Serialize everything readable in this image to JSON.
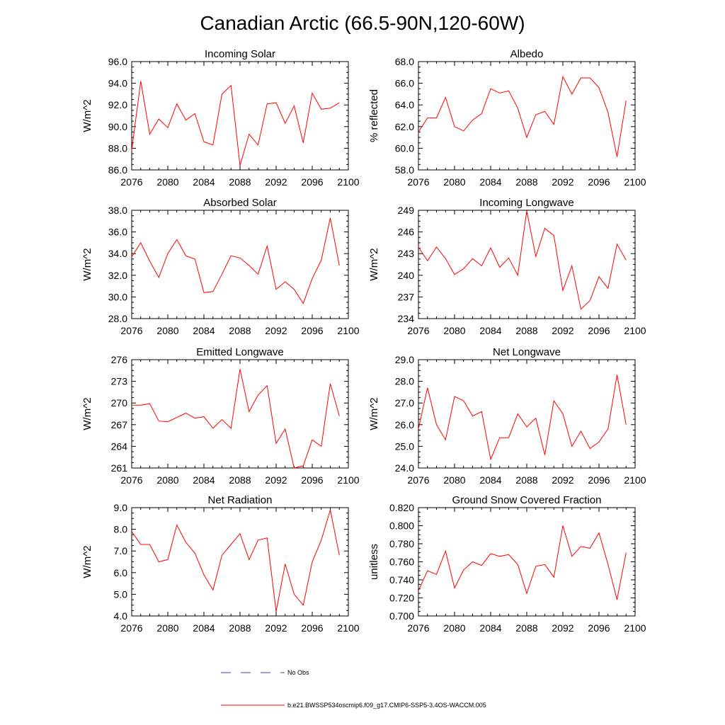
{
  "figure": {
    "title": "Canadian Arctic (66.5-90N,120-60W)"
  },
  "legend": [
    {
      "label": "No Obs",
      "color": "#4040c0",
      "style": "dashed"
    },
    {
      "label": "b.e21.BWSSP534oscmip6.f09_g17.CMIP6-SSP5-3.4OS-WACCM.005",
      "color": "#ff0000",
      "style": "solid"
    }
  ],
  "chart_data": [
    {
      "type": "line",
      "title": "Incoming Solar",
      "ylabel": "W/m^2",
      "xlim": [
        2076,
        2100
      ],
      "ylim": [
        86.0,
        96.0
      ],
      "xticks": [
        "2076",
        "2080",
        "2084",
        "2088",
        "2092",
        "2096",
        "2100"
      ],
      "yticks": [
        "86.0",
        "88.0",
        "90.0",
        "92.0",
        "94.0",
        "96.0"
      ],
      "x": [
        2076,
        2077,
        2078,
        2079,
        2080,
        2081,
        2082,
        2083,
        2084,
        2085,
        2086,
        2087,
        2088,
        2089,
        2090,
        2091,
        2092,
        2093,
        2094,
        2095,
        2096,
        2097,
        2098,
        2099
      ],
      "series": [
        {
          "color": "#ff0000",
          "values": [
            87.8,
            94.2,
            89.3,
            90.7,
            89.9,
            92.1,
            90.6,
            91.2,
            88.6,
            88.3,
            93.0,
            93.8,
            86.4,
            89.3,
            88.3,
            92.1,
            92.2,
            90.3,
            91.9,
            88.5,
            93.1,
            91.6,
            91.7,
            92.2
          ]
        }
      ]
    },
    {
      "type": "line",
      "title": "Albedo",
      "ylabel": "% reflected",
      "xlim": [
        2076,
        2100
      ],
      "ylim": [
        58.0,
        68.0
      ],
      "xticks": [
        "2076",
        "2080",
        "2084",
        "2088",
        "2092",
        "2096",
        "2100"
      ],
      "yticks": [
        "58.0",
        "60.0",
        "62.0",
        "64.0",
        "66.0",
        "68.0"
      ],
      "x": [
        2076,
        2077,
        2078,
        2079,
        2080,
        2081,
        2082,
        2083,
        2084,
        2085,
        2086,
        2087,
        2088,
        2089,
        2090,
        2091,
        2092,
        2093,
        2094,
        2095,
        2096,
        2097,
        2098,
        2099
      ],
      "series": [
        {
          "color": "#ff0000",
          "values": [
            61.5,
            62.8,
            62.8,
            64.7,
            62.0,
            61.6,
            62.6,
            63.2,
            65.5,
            65.1,
            65.3,
            63.7,
            61.0,
            63.1,
            63.4,
            62.2,
            66.6,
            65.0,
            66.5,
            66.5,
            65.6,
            63.3,
            59.2,
            64.4
          ]
        }
      ]
    },
    {
      "type": "line",
      "title": "Absorbed Solar",
      "ylabel": "W/m^2",
      "xlim": [
        2076,
        2100
      ],
      "ylim": [
        28.0,
        38.0
      ],
      "xticks": [
        "2076",
        "2080",
        "2084",
        "2088",
        "2092",
        "2096",
        "2100"
      ],
      "yticks": [
        "28.0",
        "30.0",
        "32.0",
        "34.0",
        "36.0",
        "38.0"
      ],
      "x": [
        2076,
        2077,
        2078,
        2079,
        2080,
        2081,
        2082,
        2083,
        2084,
        2085,
        2086,
        2087,
        2088,
        2089,
        2090,
        2091,
        2092,
        2093,
        2094,
        2095,
        2096,
        2097,
        2098,
        2099
      ],
      "series": [
        {
          "color": "#ff0000",
          "values": [
            33.7,
            35.0,
            33.3,
            31.8,
            34.0,
            35.3,
            33.8,
            33.5,
            30.4,
            30.5,
            32.1,
            33.8,
            33.6,
            32.9,
            32.1,
            34.7,
            30.7,
            31.4,
            30.7,
            29.4,
            31.7,
            33.4,
            37.3,
            32.9
          ]
        }
      ]
    },
    {
      "type": "line",
      "title": "Incoming Longwave",
      "ylabel": "W/m^2",
      "xlim": [
        2076,
        2100
      ],
      "ylim": [
        234,
        249
      ],
      "xticks": [
        "2076",
        "2080",
        "2084",
        "2088",
        "2092",
        "2096",
        "2100"
      ],
      "yticks": [
        "234",
        "237",
        "240",
        "243",
        "246",
        "249"
      ],
      "x": [
        2076,
        2077,
        2078,
        2079,
        2080,
        2081,
        2082,
        2083,
        2084,
        2085,
        2086,
        2087,
        2088,
        2089,
        2090,
        2091,
        2092,
        2093,
        2094,
        2095,
        2096,
        2097,
        2098,
        2099
      ],
      "series": [
        {
          "color": "#ff0000",
          "values": [
            243.9,
            242.0,
            243.9,
            242.3,
            240.1,
            240.9,
            242.3,
            241.3,
            243.8,
            241.1,
            242.4,
            240.0,
            248.9,
            242.6,
            246.5,
            245.5,
            237.9,
            241.3,
            235.3,
            236.5,
            239.8,
            238.2,
            244.3,
            242.1
          ]
        }
      ]
    },
    {
      "type": "line",
      "title": "Emitted Longwave",
      "ylabel": "W/m^2",
      "xlim": [
        2076,
        2100
      ],
      "ylim": [
        261,
        276
      ],
      "xticks": [
        "2076",
        "2080",
        "2084",
        "2088",
        "2092",
        "2096",
        "2100"
      ],
      "yticks": [
        "261",
        "264",
        "267",
        "270",
        "273",
        "276"
      ],
      "x": [
        2076,
        2077,
        2078,
        2079,
        2080,
        2081,
        2082,
        2083,
        2084,
        2085,
        2086,
        2087,
        2088,
        2089,
        2090,
        2091,
        2092,
        2093,
        2094,
        2095,
        2096,
        2097,
        2098,
        2099
      ],
      "series": [
        {
          "color": "#ff0000",
          "values": [
            269.7,
            269.7,
            269.9,
            267.5,
            267.4,
            268.0,
            268.6,
            267.9,
            268.1,
            266.5,
            267.7,
            266.5,
            274.7,
            268.8,
            271.1,
            272.4,
            264.4,
            266.4,
            261.0,
            261.3,
            264.9,
            264.0,
            272.7,
            268.2
          ]
        }
      ]
    },
    {
      "type": "line",
      "title": "Net Longwave",
      "ylabel": "W/m^2",
      "xlim": [
        2076,
        2100
      ],
      "ylim": [
        24.0,
        29.0
      ],
      "xticks": [
        "2076",
        "2080",
        "2084",
        "2088",
        "2092",
        "2096",
        "2100"
      ],
      "yticks": [
        "24.0",
        "25.0",
        "26.0",
        "27.0",
        "28.0",
        "29.0"
      ],
      "x": [
        2076,
        2077,
        2078,
        2079,
        2080,
        2081,
        2082,
        2083,
        2084,
        2085,
        2086,
        2087,
        2088,
        2089,
        2090,
        2091,
        2092,
        2093,
        2094,
        2095,
        2096,
        2097,
        2098,
        2099
      ],
      "series": [
        {
          "color": "#ff0000",
          "values": [
            25.8,
            27.7,
            26.0,
            25.3,
            27.3,
            27.1,
            26.4,
            26.6,
            24.4,
            25.4,
            25.4,
            26.5,
            25.9,
            26.3,
            24.6,
            27.1,
            26.5,
            25.0,
            25.7,
            24.9,
            25.2,
            25.8,
            28.3,
            26.0
          ]
        }
      ]
    },
    {
      "type": "line",
      "title": "Net Radiation",
      "ylabel": "W/m^2",
      "xlim": [
        2076,
        2100
      ],
      "ylim": [
        4.0,
        9.0
      ],
      "xticks": [
        "2076",
        "2080",
        "2084",
        "2088",
        "2092",
        "2096",
        "2100"
      ],
      "yticks": [
        "4.0",
        "5.0",
        "6.0",
        "7.0",
        "8.0",
        "9.0"
      ],
      "x": [
        2076,
        2077,
        2078,
        2079,
        2080,
        2081,
        2082,
        2083,
        2084,
        2085,
        2086,
        2087,
        2088,
        2089,
        2090,
        2091,
        2092,
        2093,
        2094,
        2095,
        2096,
        2097,
        2098,
        2099
      ],
      "series": [
        {
          "color": "#ff0000",
          "values": [
            7.9,
            7.3,
            7.3,
            6.5,
            6.6,
            8.2,
            7.4,
            6.9,
            5.9,
            5.2,
            6.8,
            7.3,
            7.8,
            6.6,
            7.5,
            7.6,
            4.2,
            6.4,
            5.0,
            4.5,
            6.5,
            7.5,
            8.9,
            6.8
          ]
        }
      ]
    },
    {
      "type": "line",
      "title": "Ground Snow Covered Fraction",
      "ylabel": "unitless",
      "xlim": [
        2076,
        2100
      ],
      "ylim": [
        0.7,
        0.82
      ],
      "xticks": [
        "2076",
        "2080",
        "2084",
        "2088",
        "2092",
        "2096",
        "2100"
      ],
      "yticks": [
        "0.700",
        "0.720",
        "0.740",
        "0.760",
        "0.780",
        "0.800",
        "0.820"
      ],
      "x": [
        2076,
        2077,
        2078,
        2079,
        2080,
        2081,
        2082,
        2083,
        2084,
        2085,
        2086,
        2087,
        2088,
        2089,
        2090,
        2091,
        2092,
        2093,
        2094,
        2095,
        2096,
        2097,
        2098,
        2099
      ],
      "series": [
        {
          "color": "#ff0000",
          "values": [
            0.728,
            0.75,
            0.746,
            0.772,
            0.731,
            0.751,
            0.76,
            0.756,
            0.769,
            0.766,
            0.768,
            0.757,
            0.725,
            0.755,
            0.757,
            0.743,
            0.8,
            0.766,
            0.777,
            0.775,
            0.792,
            0.757,
            0.718,
            0.77
          ]
        }
      ]
    }
  ]
}
